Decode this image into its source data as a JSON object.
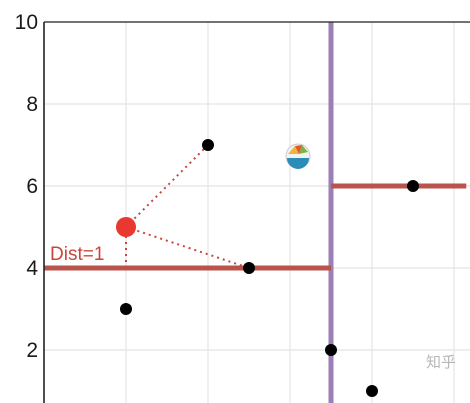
{
  "chart_data": {
    "type": "scatter",
    "title": "",
    "xlabel": "",
    "ylabel": "",
    "xlim": [
      0,
      10.3
    ],
    "ylim": [
      1,
      10
    ],
    "grid": true,
    "y_ticks": [
      {
        "value": 2,
        "label": "2"
      },
      {
        "value": 4,
        "label": "4"
      },
      {
        "value": 6,
        "label": "6"
      },
      {
        "value": 8,
        "label": "8"
      },
      {
        "value": 10,
        "label": "10"
      }
    ],
    "x_gridlines": [
      2,
      4,
      6,
      8,
      10
    ],
    "points": [
      {
        "x": 2,
        "y": 3
      },
      {
        "x": 4,
        "y": 7
      },
      {
        "x": 5,
        "y": 4
      },
      {
        "x": 7,
        "y": 2
      },
      {
        "x": 8,
        "y": 1
      },
      {
        "x": 9,
        "y": 6
      }
    ],
    "query_point": {
      "x": 2,
      "y": 5,
      "color": "#e8382f"
    },
    "neighbor_links": [
      {
        "to": {
          "x": 4,
          "y": 7
        }
      },
      {
        "to": {
          "x": 5,
          "y": 4
        }
      }
    ],
    "split_lines": [
      {
        "orientation": "vertical",
        "x": 7,
        "y_from": 1,
        "y_to": 10,
        "color": "#9b7fb6"
      },
      {
        "orientation": "horizontal",
        "y": 4,
        "x_from": 0,
        "x_to": 7,
        "color": "#b9534b"
      },
      {
        "orientation": "horizontal",
        "y": 6,
        "x_from": 7,
        "x_to": 10.3,
        "color": "#b9534b"
      }
    ],
    "distance_annotation": {
      "label": "Dist=1",
      "x": 2,
      "y_from": 4,
      "y_to": 5,
      "color": "#c9453b"
    },
    "colors": {
      "point": "#000000",
      "grid": "#e4e4e4",
      "axis": "#222222",
      "link": "#c9453b"
    }
  },
  "watermark": "知乎"
}
